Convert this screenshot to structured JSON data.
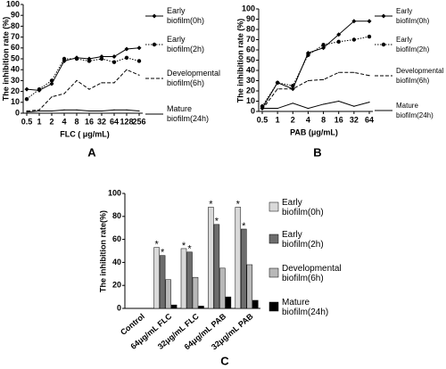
{
  "chart_data": [
    {
      "type": "line",
      "panel_label": "A",
      "x_label": "FLC ( μg/mL)",
      "y_label": "The inhibition rate (%)",
      "categories": [
        "0.5",
        "1",
        "2",
        "4",
        "8",
        "16",
        "32",
        "64",
        "128",
        "256"
      ],
      "ylim": [
        0,
        100
      ],
      "yticks": [
        0,
        10,
        20,
        30,
        40,
        50,
        60,
        70,
        80,
        90,
        100
      ],
      "series": [
        {
          "name": "Early biofilm(0h)",
          "color": "#000000",
          "line_style": "solid",
          "marker": "diamond",
          "values": [
            22,
            21,
            27,
            48,
            51,
            50,
            52,
            52,
            59,
            60
          ]
        },
        {
          "name": "Early biofilm(2h)",
          "color": "#000000",
          "line_style": "dotted",
          "marker": "circle",
          "values": [
            13,
            22,
            30,
            50,
            50,
            48,
            50,
            47,
            51,
            48
          ]
        },
        {
          "name": "Developmental biofilm(6h)",
          "color": "#000000",
          "line_style": "dashed",
          "marker": "none",
          "values": [
            2,
            3,
            15,
            18,
            30,
            22,
            28,
            28,
            40,
            35
          ]
        },
        {
          "name": "Mature biofilm(24h)",
          "color": "#000000",
          "line_style": "solid",
          "marker": "none",
          "values": [
            1,
            2,
            2,
            3,
            3,
            2,
            2,
            3,
            3,
            2
          ]
        }
      ]
    },
    {
      "type": "line",
      "panel_label": "B",
      "x_label": "PAB (μg/mL)",
      "y_label": "The inhibition rate (%)",
      "categories": [
        "0.5",
        "1",
        "2",
        "4",
        "8",
        "16",
        "32",
        "64"
      ],
      "ylim": [
        0,
        100
      ],
      "yticks": [
        0,
        10,
        20,
        30,
        40,
        50,
        60,
        70,
        80,
        90,
        100
      ],
      "series": [
        {
          "name": "Early biofilm(0h)",
          "color": "#000000",
          "line_style": "solid",
          "marker": "diamond",
          "values": [
            3,
            28,
            22,
            57,
            62,
            75,
            88,
            88
          ]
        },
        {
          "name": "Early biofilm(2h)",
          "color": "#000000",
          "line_style": "dotted",
          "marker": "circle",
          "values": [
            5,
            28,
            25,
            55,
            65,
            68,
            70,
            73
          ]
        },
        {
          "name": "Developmental biofilm(6h)",
          "color": "#000000",
          "line_style": "dashed",
          "marker": "none",
          "values": [
            2,
            22,
            22,
            30,
            31,
            38,
            38,
            35
          ]
        },
        {
          "name": "Mature biofilm(24h)",
          "color": "#000000",
          "line_style": "solid",
          "marker": "none",
          "values": [
            3,
            3,
            8,
            3,
            7,
            10,
            5,
            9
          ]
        }
      ]
    },
    {
      "type": "bar",
      "panel_label": "C",
      "y_label": "The inhibition rate(%)",
      "categories": [
        "Control",
        "64μg/mL FLC",
        "32μg/mL FLC",
        "64μg/mL PAB",
        "32μg/mL PAB"
      ],
      "ylim": [
        0,
        100
      ],
      "yticks": [
        0,
        20,
        40,
        60,
        80,
        100
      ],
      "series": [
        {
          "name": "Early biofilm(0h)",
          "color": "#d9d9d9",
          "values": [
            0,
            53,
            52,
            88,
            88
          ]
        },
        {
          "name": "Early biofilm(2h)",
          "color": "#6d6d6d",
          "values": [
            0,
            46,
            49,
            73,
            69
          ]
        },
        {
          "name": "Developmental biofilm(6h)",
          "color": "#b8b8b8",
          "values": [
            0,
            25,
            27,
            35,
            38
          ]
        },
        {
          "name": "Mature biofilm(24h)",
          "color": "#000000",
          "values": [
            0,
            3,
            2,
            10,
            7
          ]
        }
      ],
      "annotations": [
        {
          "text": "*",
          "category": "64μg/mL FLC",
          "series": "Early biofilm(0h)"
        },
        {
          "text": "*",
          "category": "64μg/mL FLC",
          "series": "Early biofilm(2h)"
        },
        {
          "text": "*",
          "category": "32μg/mL FLC",
          "series": "Early biofilm(0h)"
        },
        {
          "text": "*",
          "category": "32μg/mL FLC",
          "series": "Early biofilm(2h)"
        },
        {
          "text": "*",
          "category": "64μg/mL PAB",
          "series": "Early biofilm(0h)"
        },
        {
          "text": "*",
          "category": "64μg/mL PAB",
          "series": "Early biofilm(2h)"
        },
        {
          "text": "*",
          "category": "32μg/mL PAB",
          "series": "Early biofilm(0h)"
        },
        {
          "text": "*",
          "category": "32μg/mL PAB",
          "series": "Early biofilm(2h)"
        }
      ]
    }
  ]
}
